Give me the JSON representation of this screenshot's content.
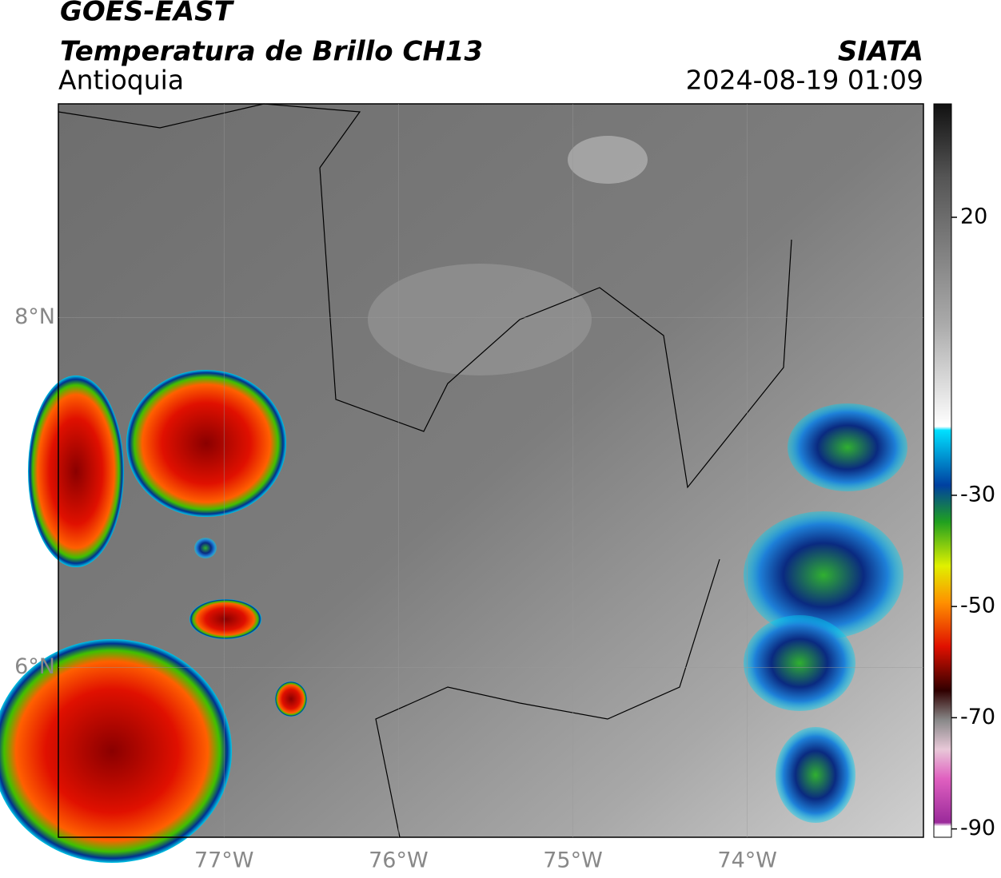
{
  "header": {
    "title": "GOES-EAST",
    "subtitle": "Temperatura de Brillo CH13",
    "region": "Antioquia",
    "source": "SIATA",
    "datetime": "2024-08-19 01:09"
  },
  "map": {
    "lon_range": [
      -77.95,
      -72.99
    ],
    "lat_range": [
      5.03,
      9.22
    ],
    "lat_ticks": [
      {
        "value": 8,
        "label": "8°N"
      },
      {
        "value": 6,
        "label": "6°N"
      }
    ],
    "lon_ticks": [
      {
        "value": -77,
        "label": "77°W"
      },
      {
        "value": -76,
        "label": "76°W"
      },
      {
        "value": -75,
        "label": "75°W"
      },
      {
        "value": -74,
        "label": "74°W"
      }
    ]
  },
  "colorbar": {
    "range": [
      -91.5,
      40.4
    ],
    "ticks": [
      20,
      -30,
      -50,
      -70,
      -90
    ]
  }
}
